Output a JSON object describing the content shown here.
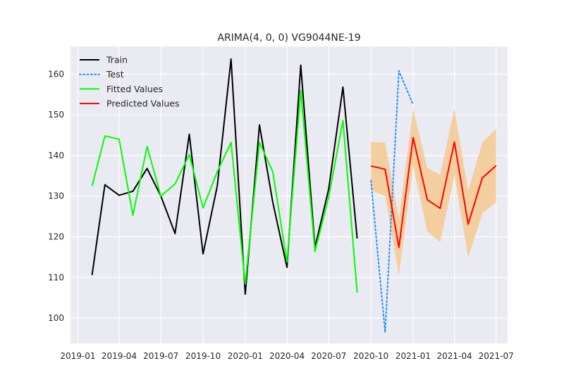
{
  "chart_data": {
    "type": "line",
    "title": "ARIMA(4, 0, 0) VG9044NE-19",
    "xlabel": "",
    "ylabel": "",
    "xlim": [
      "2018-12-16",
      "2021-07-26"
    ],
    "ylim": [
      93.8,
      166.8
    ],
    "x_ticks": [
      {
        "date": "2019-01-01",
        "label": "2019-01"
      },
      {
        "date": "2019-04-01",
        "label": "2019-04"
      },
      {
        "date": "2019-07-01",
        "label": "2019-07"
      },
      {
        "date": "2019-10-01",
        "label": "2019-10"
      },
      {
        "date": "2020-01-01",
        "label": "2020-01"
      },
      {
        "date": "2020-04-01",
        "label": "2020-04"
      },
      {
        "date": "2020-07-01",
        "label": "2020-07"
      },
      {
        "date": "2020-10-01",
        "label": "2020-10"
      },
      {
        "date": "2021-01-01",
        "label": "2021-01"
      },
      {
        "date": "2021-04-01",
        "label": "2021-04"
      },
      {
        "date": "2021-07-01",
        "label": "2021-07"
      }
    ],
    "y_ticks": [
      100,
      110,
      120,
      130,
      140,
      150,
      160
    ],
    "grid": true,
    "legend_position": "top-left",
    "background": "#eaeaf2",
    "series": [
      {
        "name": "Train",
        "color": "#000000",
        "style": "solid",
        "points": [
          [
            "2019-02-01",
            110.6
          ],
          [
            "2019-03-01",
            132.8
          ],
          [
            "2019-04-01",
            130.2
          ],
          [
            "2019-05-01",
            131.2
          ],
          [
            "2019-06-01",
            136.8
          ],
          [
            "2019-07-01",
            130.0
          ],
          [
            "2019-08-01",
            120.8
          ],
          [
            "2019-09-01",
            145.2
          ],
          [
            "2019-10-01",
            115.8
          ],
          [
            "2019-11-01",
            132.5
          ],
          [
            "2019-12-01",
            163.7
          ],
          [
            "2020-01-01",
            105.9
          ],
          [
            "2020-02-01",
            147.5
          ],
          [
            "2020-03-01",
            128.5
          ],
          [
            "2020-04-01",
            112.5
          ],
          [
            "2020-05-01",
            162.2
          ],
          [
            "2020-06-01",
            117.4
          ],
          [
            "2020-07-01",
            131.8
          ],
          [
            "2020-08-01",
            156.8
          ],
          [
            "2020-09-01",
            119.6
          ]
        ]
      },
      {
        "name": "Test",
        "color": "#1e90ff",
        "style": "dotted",
        "points": [
          [
            "2020-10-01",
            133.8
          ],
          [
            "2020-11-01",
            96.5
          ],
          [
            "2020-12-01",
            160.8
          ],
          [
            "2021-01-01",
            152.5
          ]
        ]
      },
      {
        "name": "Fitted Values",
        "color": "#00ff00",
        "style": "solid",
        "points": [
          [
            "2019-02-01",
            132.5
          ],
          [
            "2019-03-01",
            144.8
          ],
          [
            "2019-04-01",
            144.0
          ],
          [
            "2019-05-01",
            125.3
          ],
          [
            "2019-06-01",
            142.2
          ],
          [
            "2019-07-01",
            130.0
          ],
          [
            "2019-08-01",
            133.0
          ],
          [
            "2019-09-01",
            140.2
          ],
          [
            "2019-10-01",
            127.1
          ],
          [
            "2019-11-01",
            136.0
          ],
          [
            "2019-12-01",
            143.2
          ],
          [
            "2020-01-01",
            108.4
          ],
          [
            "2020-02-01",
            143.2
          ],
          [
            "2020-03-01",
            136.0
          ],
          [
            "2020-04-01",
            113.8
          ],
          [
            "2020-05-01",
            156.0
          ],
          [
            "2020-06-01",
            116.4
          ],
          [
            "2020-07-01",
            129.8
          ],
          [
            "2020-08-01",
            148.6
          ],
          [
            "2020-09-01",
            106.3
          ]
        ]
      },
      {
        "name": "Predicted Values",
        "color": "#ff0000",
        "style": "solid",
        "points": [
          [
            "2020-10-01",
            137.4
          ],
          [
            "2020-11-01",
            136.6
          ],
          [
            "2020-12-01",
            117.4
          ],
          [
            "2021-01-01",
            144.4
          ],
          [
            "2021-02-01",
            129.1
          ],
          [
            "2021-03-01",
            127.0
          ],
          [
            "2021-04-01",
            143.3
          ],
          [
            "2021-05-01",
            123.1
          ],
          [
            "2021-06-01",
            134.5
          ],
          [
            "2021-07-01",
            137.5
          ]
        ]
      }
    ],
    "confidence_band": {
      "color": "#f5c98f",
      "lower": [
        [
          "2020-10-01",
          131.5
        ],
        [
          "2020-11-01",
          130.0
        ],
        [
          "2020-12-01",
          110.5
        ],
        [
          "2021-01-01",
          137.4
        ],
        [
          "2021-02-01",
          121.3
        ],
        [
          "2021-03-01",
          118.7
        ],
        [
          "2021-04-01",
          135.2
        ],
        [
          "2021-05-01",
          114.9
        ],
        [
          "2021-06-01",
          125.8
        ],
        [
          "2021-07-01",
          128.5
        ]
      ],
      "upper": [
        [
          "2020-10-01",
          143.3
        ],
        [
          "2020-11-01",
          143.2
        ],
        [
          "2020-12-01",
          124.3
        ],
        [
          "2021-01-01",
          151.4
        ],
        [
          "2021-02-01",
          136.9
        ],
        [
          "2021-03-01",
          135.3
        ],
        [
          "2021-04-01",
          151.4
        ],
        [
          "2021-05-01",
          131.3
        ],
        [
          "2021-06-01",
          143.2
        ],
        [
          "2021-07-01",
          146.5
        ]
      ]
    }
  }
}
